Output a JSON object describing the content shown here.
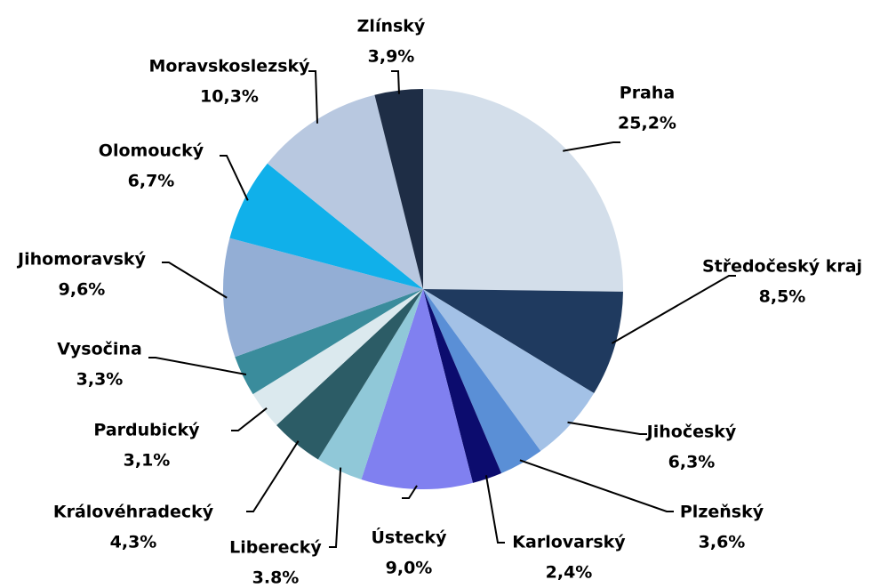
{
  "chart_data": {
    "type": "pie",
    "categories": [
      "Praha",
      "Středočeský kraj",
      "Jihočeský",
      "Plzeňský",
      "Karlovarský",
      "Ústecký",
      "Liberecký",
      "Královéhradecký",
      "Pardubický",
      "Vysočina",
      "Jihomoravský",
      "Olomoucký",
      "Moravskoslezský",
      "Zlínský"
    ],
    "values": [
      25.2,
      8.5,
      6.3,
      3.6,
      2.4,
      9.0,
      3.8,
      4.3,
      3.1,
      3.3,
      9.6,
      6.7,
      10.3,
      3.9
    ],
    "value_labels": [
      "25,2%",
      "8,5%",
      "6,3%",
      "3,6%",
      "2,4%",
      "9,0%",
      "3.8%",
      "4,3%",
      "3,1%",
      "3,3%",
      "9,6%",
      "6,7%",
      "10,3%",
      "3,9%"
    ],
    "colors": [
      "#d3deea",
      "#1f3a5f",
      "#a3c1e6",
      "#5a8fd6",
      "#0c0c6e",
      "#8080f0",
      "#90c8d8",
      "#2c5c66",
      "#dbe9ee",
      "#3a8c9c",
      "#93aed5",
      "#10b0ea",
      "#b8c8e0",
      "#1e2d45"
    ]
  }
}
